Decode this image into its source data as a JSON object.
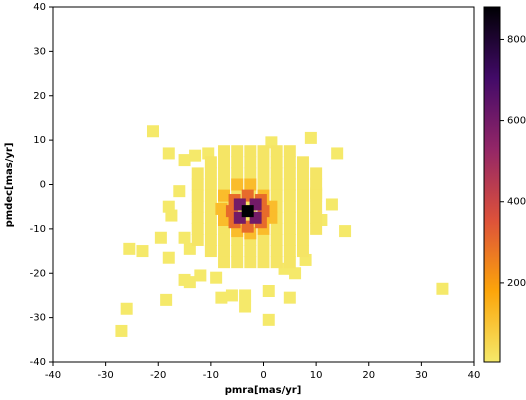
{
  "chart_data": {
    "type": "scatter",
    "xlabel": "pmra[mas/yr]",
    "ylabel": "pmdec[mas/yr]",
    "xlim": [
      -40,
      40
    ],
    "ylim": [
      -40,
      40
    ],
    "xticks": [
      -40,
      -30,
      -20,
      -10,
      0,
      10,
      20,
      30,
      40
    ],
    "yticks": [
      -40,
      -30,
      -20,
      -10,
      0,
      10,
      20,
      30,
      40
    ],
    "clim": [
      5,
      880
    ],
    "cticks": [
      200,
      400,
      600,
      800
    ],
    "colormap": [
      "#f5e96a",
      "#fca50a",
      "#dd513a",
      "#932667",
      "#420a68",
      "#000004"
    ],
    "x": [
      -21,
      -18,
      -15,
      -13,
      -10.5,
      9,
      14,
      1.5,
      -16,
      -18,
      -17.5,
      -23,
      -25.5,
      -19.5,
      -18,
      -15,
      -14,
      -15,
      -14,
      -18.5,
      -26,
      -27,
      -12,
      -9,
      -8,
      -6,
      -3.5,
      -3.5,
      1,
      5,
      1,
      34,
      15.5,
      13,
      11,
      10,
      6,
      8,
      4,
      -7.5,
      -5,
      -2.5,
      0,
      2.5,
      5,
      -10,
      -7.5,
      -5,
      -2.5,
      0,
      2.5,
      5,
      7.5,
      -12.5,
      -10,
      -7.5,
      -5,
      -2.5,
      0,
      2.5,
      5,
      7.5,
      10,
      -12.5,
      -10,
      -7.5,
      -5,
      -2.5,
      0,
      2.5,
      5,
      7.5,
      10,
      -12.5,
      -10,
      -7.5,
      -5,
      -2.5,
      0,
      2.5,
      5,
      7.5,
      10,
      -12.5,
      -10,
      -7.5,
      -5,
      -2.5,
      0,
      2.5,
      5,
      7.5,
      10,
      -12.5,
      -10,
      -7.5,
      -5,
      -2.5,
      0,
      2.5,
      5,
      7.5,
      10,
      -12.5,
      -10,
      -7.5,
      -5,
      -2.5,
      0,
      2.5,
      5,
      7.5,
      10,
      -12.5,
      -10,
      -7.5,
      -5,
      -2.5,
      0,
      2.5,
      5,
      7.5,
      -10,
      -7.5,
      -5,
      -2.5,
      0,
      2.5,
      5,
      7.5,
      -7.5,
      -5,
      -2.5,
      0,
      2.5,
      5,
      -7.5,
      -5,
      -2.5,
      0,
      1.5,
      1.5,
      0,
      -2.5,
      -5,
      -7.5,
      -8,
      -5.5,
      -3,
      -0.5,
      0,
      -0.5,
      -3,
      -5.5,
      -6,
      -4.5,
      -1.5,
      -1.5,
      -4.5,
      -3
    ],
    "y": [
      12,
      7,
      5.5,
      6.5,
      7,
      10.5,
      7,
      9.5,
      -1.5,
      -5,
      -7,
      -15,
      -14.5,
      -12,
      -16.5,
      -12,
      -14.5,
      -21.5,
      -22,
      -26,
      -28,
      -33,
      -20.5,
      -21,
      -25.5,
      -25,
      -25,
      -27.5,
      -24,
      -25.5,
      -30.5,
      -23.5,
      -10.5,
      -4.5,
      -8,
      -2,
      -20,
      -17,
      -19,
      7.5,
      7.5,
      7.5,
      7.5,
      7.5,
      7.5,
      5,
      5,
      5,
      5,
      5,
      5,
      5,
      5,
      2.5,
      2.5,
      2.5,
      2.5,
      2.5,
      2.5,
      2.5,
      2.5,
      2.5,
      2.5,
      0,
      0,
      0,
      0,
      0,
      0,
      0,
      0,
      0,
      0,
      -2.5,
      -2.5,
      -2.5,
      -2.5,
      -2.5,
      -2.5,
      -2.5,
      -2.5,
      -2.5,
      -2.5,
      -5,
      -5,
      -5,
      -5,
      -5,
      -5,
      -5,
      -5,
      -5,
      -5,
      -7.5,
      -7.5,
      -7.5,
      -7.5,
      -7.5,
      -7.5,
      -7.5,
      -7.5,
      -7.5,
      -7.5,
      -10,
      -10,
      -10,
      -10,
      -10,
      -10,
      -10,
      -10,
      -10,
      -10,
      -12.5,
      -12.5,
      -12.5,
      -12.5,
      -12.5,
      -12.5,
      -12.5,
      -12.5,
      -12.5,
      -15,
      -15,
      -15,
      -15,
      -15,
      -15,
      -15,
      -15,
      -17.5,
      -17.5,
      -17.5,
      -17.5,
      -17.5,
      -17.5,
      -2.5,
      0,
      0,
      -2.5,
      -5,
      -7.5,
      -10,
      -11,
      -10.5,
      -8,
      -5.5,
      -3.5,
      -2.5,
      -3.5,
      -6,
      -8.5,
      -9.5,
      -8.5,
      -6,
      -4.5,
      -4.5,
      -7.5,
      -7.5,
      -6
    ],
    "c": [
      5,
      5,
      5,
      5,
      5,
      5,
      5,
      5,
      5,
      5,
      5,
      5,
      5,
      5,
      5,
      5,
      5,
      5,
      5,
      5,
      5,
      5,
      5,
      5,
      5,
      5,
      5,
      5,
      5,
      5,
      5,
      5,
      5,
      5,
      5,
      5,
      5,
      5,
      5,
      15,
      15,
      15,
      15,
      15,
      15,
      15,
      15,
      15,
      15,
      15,
      15,
      15,
      15,
      15,
      15,
      15,
      15,
      15,
      15,
      15,
      15,
      15,
      15,
      15,
      15,
      15,
      15,
      15,
      15,
      15,
      15,
      15,
      15,
      15,
      15,
      15,
      15,
      15,
      15,
      15,
      15,
      15,
      15,
      15,
      15,
      15,
      15,
      15,
      15,
      15,
      15,
      15,
      15,
      15,
      15,
      15,
      15,
      15,
      15,
      15,
      15,
      15,
      15,
      15,
      15,
      15,
      15,
      15,
      15,
      15,
      15,
      15,
      15,
      15,
      15,
      15,
      15,
      15,
      15,
      15,
      15,
      15,
      15,
      15,
      15,
      15,
      15,
      15,
      15,
      15,
      15,
      15,
      15,
      15,
      15,
      15,
      120,
      120,
      120,
      120,
      120,
      120,
      120,
      120,
      120,
      120,
      120,
      300,
      300,
      300,
      300,
      300,
      300,
      300,
      300,
      600,
      600,
      600,
      600,
      880
    ]
  }
}
